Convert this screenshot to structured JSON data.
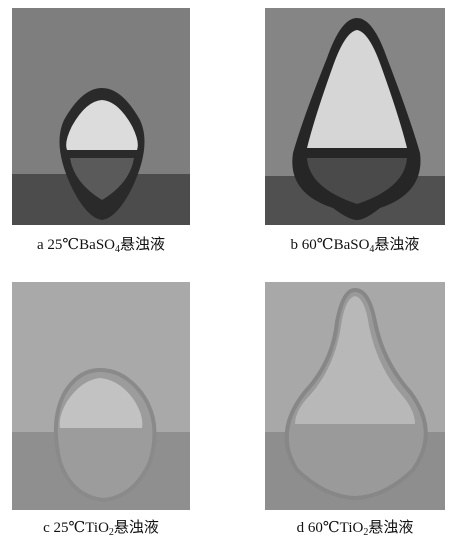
{
  "panels": [
    {
      "prefix": "a  25℃BaSO",
      "sub": "4",
      "suffix": "悬浊液"
    },
    {
      "prefix": "b  60℃BaSO",
      "sub": "4",
      "suffix": "悬浊液"
    },
    {
      "prefix": "c  25℃TiO",
      "sub": "2",
      "suffix": "悬浊液"
    },
    {
      "prefix": "d  60℃TiO",
      "sub": "2",
      "suffix": "悬浊液"
    }
  ]
}
